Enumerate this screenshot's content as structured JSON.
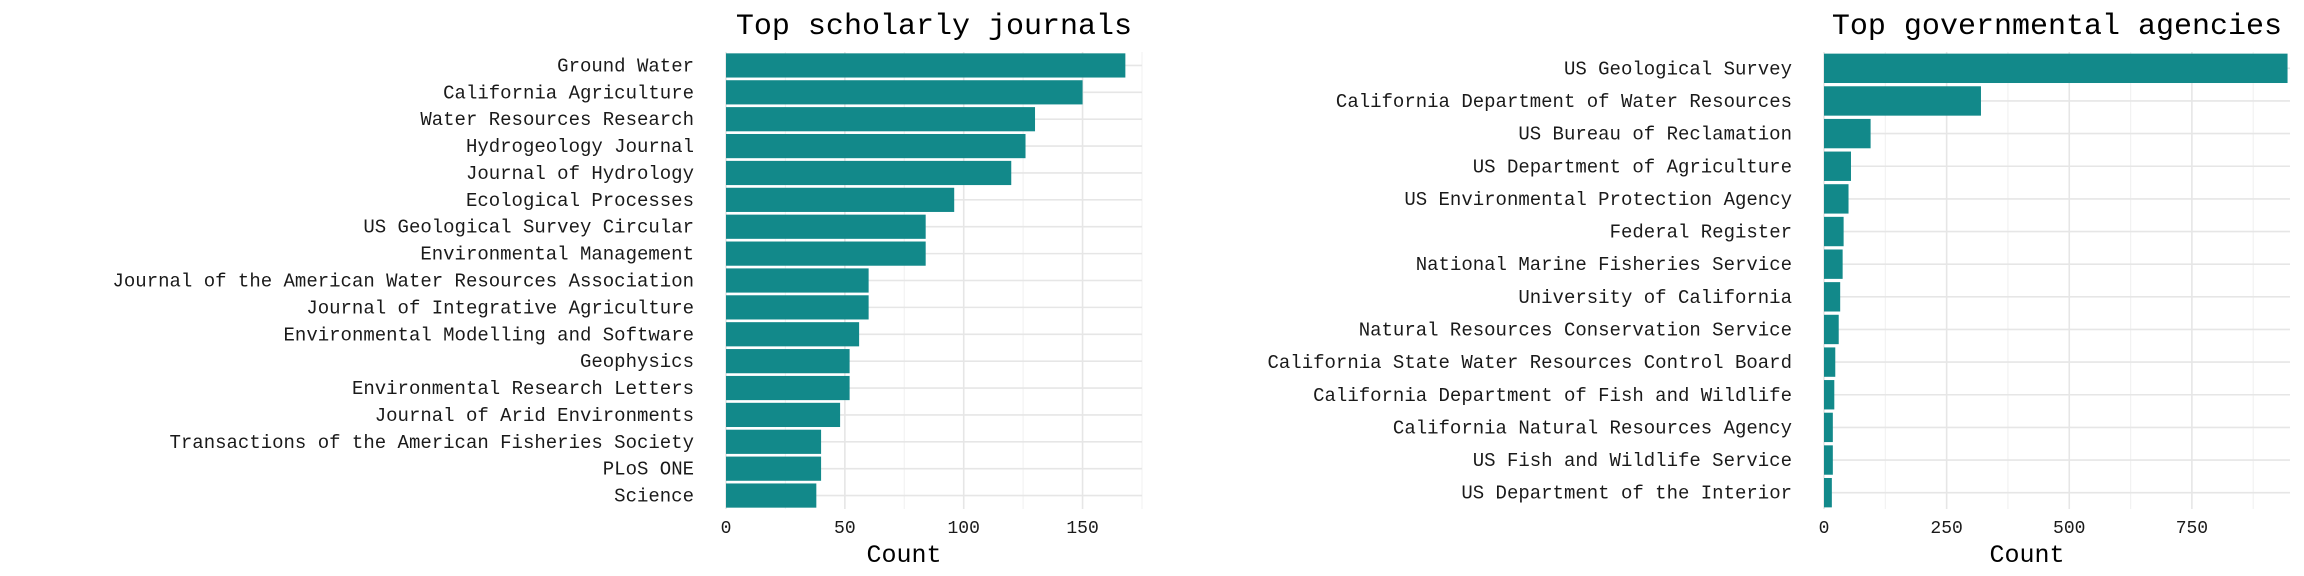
{
  "chart_data": [
    {
      "type": "bar",
      "orientation": "horizontal",
      "title": "Top scholarly journals",
      "xlabel": "Count",
      "ylabel": "",
      "xlim": [
        0,
        175
      ],
      "x_ticks": [
        0,
        50,
        100,
        150
      ],
      "color": "#12898a",
      "grid": true,
      "categories": [
        "Ground Water",
        "California Agriculture",
        "Water Resources Research",
        "Hydrogeology Journal",
        "Journal of Hydrology",
        "Ecological Processes",
        "US Geological Survey Circular",
        "Environmental Management",
        "Journal of the American Water Resources Association",
        "Journal of Integrative Agriculture",
        "Environmental Modelling and Software",
        "Geophysics",
        "Environmental Research Letters",
        "Journal of Arid Environments",
        "Transactions of the American Fisheries Society",
        "PLoS ONE",
        "Science"
      ],
      "values": [
        168,
        150,
        130,
        126,
        120,
        96,
        84,
        84,
        60,
        60,
        56,
        52,
        52,
        48,
        40,
        40,
        38
      ]
    },
    {
      "type": "bar",
      "orientation": "horizontal",
      "title": "Top governmental agencies",
      "xlabel": "Count",
      "ylabel": "",
      "xlim": [
        0,
        950
      ],
      "x_ticks": [
        0,
        250,
        500,
        750
      ],
      "color": "#12898a",
      "grid": true,
      "categories": [
        "US Geological Survey",
        "California Department of Water Resources",
        "US Bureau of Reclamation",
        "US Department of Agriculture",
        "US Environmental Protection Agency",
        "Federal Register",
        "National Marine Fisheries Service",
        "University of California",
        "Natural Resources Conservation Service",
        "California State Water Resources Control Board",
        "California Department of Fish and Wildlife",
        "California Natural Resources Agency",
        "US Fish and Wildlife Service",
        "US Department of the Interior"
      ],
      "values": [
        945,
        320,
        95,
        55,
        50,
        40,
        38,
        33,
        30,
        23,
        21,
        18,
        18,
        16
      ]
    }
  ]
}
